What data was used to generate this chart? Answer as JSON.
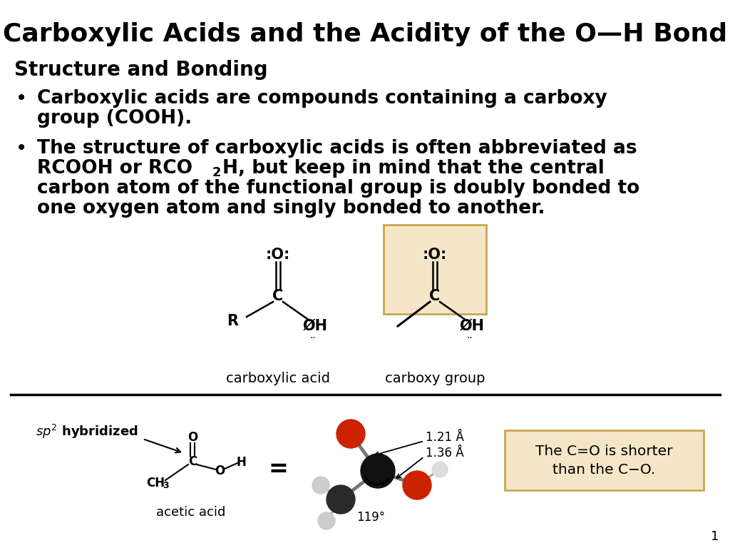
{
  "title": "Carboxylic Acids and the Acidity of the O—H Bond",
  "subtitle": "Structure and Bonding",
  "bullet1_line1": "Carboxylic acids are compounds containing a carboxy",
  "bullet1_line2": "group (COOH).",
  "bullet2_line1": "The structure of carboxylic acids is often abbreviated as",
  "bullet2_line2a": "RCOOH or RCO",
  "bullet2_line2b": "H, but keep in mind that the central",
  "bullet2_line3": "carbon atom of the functional group is doubly bonded to",
  "bullet2_line4": "one oxygen atom and singly bonded to another.",
  "label_carboxylic": "carboxylic acid",
  "label_carboxy": "carboxy group",
  "label_acetic": "acetic acid",
  "label_121": "1.21 Å",
  "label_136": "1.36 Å",
  "label_119": "119°",
  "box_text1": "The C=O is shorter",
  "box_text2": "than the C−O.",
  "page_num": "1",
  "bg_color": "#ffffff",
  "title_color": "#000000",
  "text_color": "#000000",
  "carboxy_box_fill": "#f5e6c8",
  "carboxy_box_edge": "#c8a850",
  "info_box_fill": "#f5e6c8",
  "info_box_edge": "#c8a850"
}
